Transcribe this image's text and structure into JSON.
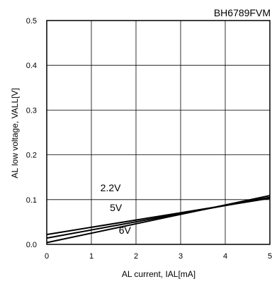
{
  "chart_data": {
    "type": "line",
    "title": "BH6789FVM",
    "xlabel": "AL current, IAL[mA]",
    "ylabel": "AL low voltage, VALL[V]",
    "xlim": [
      0,
      5
    ],
    "ylim": [
      0,
      0.5
    ],
    "xticks": [
      0,
      1,
      2,
      3,
      4,
      5
    ],
    "yticks": [
      0.0,
      0.1,
      0.2,
      0.3,
      0.4,
      0.5
    ],
    "xtick_labels": [
      "0",
      "1",
      "2",
      "3",
      "4",
      "5"
    ],
    "ytick_labels": [
      "0.0",
      "0.1",
      "0.2",
      "0.3",
      "0.4",
      "0.5"
    ],
    "grid": true,
    "legend": "none",
    "series": [
      {
        "name": "2.2V",
        "x": [
          0,
          5
        ],
        "y": [
          0.022,
          0.103
        ]
      },
      {
        "name": "5V",
        "x": [
          0,
          5
        ],
        "y": [
          0.014,
          0.105
        ]
      },
      {
        "name": "6V",
        "x": [
          0,
          5
        ],
        "y": [
          0.004,
          0.109
        ]
      }
    ],
    "annotations": [
      {
        "text": "2.2V",
        "x": 1.43,
        "y": 0.119
      },
      {
        "text": "5V",
        "x": 1.55,
        "y": 0.074
      },
      {
        "text": "6V",
        "x": 1.75,
        "y": 0.024
      }
    ]
  }
}
